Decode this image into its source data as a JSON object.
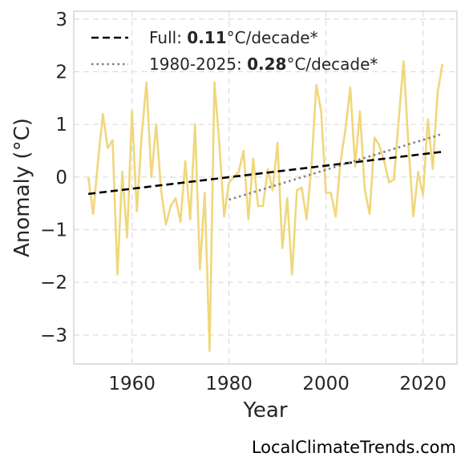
{
  "chart_data": {
    "type": "line",
    "xlabel": "Year",
    "ylabel": "Anomaly (°C)",
    "xlim": [
      1948,
      2027
    ],
    "ylim": [
      -3.55,
      3.15
    ],
    "xticks": [
      1960,
      1980,
      2000,
      2020
    ],
    "yticks": [
      -3,
      -2,
      -1,
      0,
      1,
      2,
      3
    ],
    "yticklabels": [
      "−3",
      "−2",
      "−1",
      "0",
      "1",
      "2",
      "3"
    ],
    "grid": true,
    "legend_position": "top-left",
    "colors": {
      "anomaly": "#f0d77b",
      "full_trend": "#000000",
      "recent_trend": "#808080"
    },
    "series": [
      {
        "style": "solid",
        "x": [
          1951,
          1952,
          1953,
          1954,
          1955,
          1956,
          1957,
          1958,
          1959,
          1960,
          1961,
          1962,
          1963,
          1964,
          1965,
          1966,
          1967,
          1968,
          1969,
          1970,
          1971,
          1972,
          1973,
          1974,
          1975,
          1976,
          1977,
          1978,
          1979,
          1980,
          1981,
          1982,
          1983,
          1984,
          1985,
          1986,
          1987,
          1988,
          1989,
          1990,
          1991,
          1992,
          1993,
          1994,
          1995,
          1996,
          1997,
          1998,
          1999,
          2000,
          2001,
          2002,
          2003,
          2004,
          2005,
          2006,
          2007,
          2008,
          2009,
          2010,
          2011,
          2012,
          2013,
          2014,
          2015,
          2016,
          2017,
          2018,
          2019,
          2020,
          2021,
          2022,
          2023,
          2024
        ],
        "y": [
          0.0,
          -0.7,
          0.3,
          1.2,
          0.55,
          0.7,
          -1.85,
          0.1,
          -1.15,
          1.25,
          -0.65,
          0.8,
          1.8,
          0.0,
          1.0,
          -0.25,
          -0.9,
          -0.55,
          -0.4,
          -0.85,
          0.3,
          -0.8,
          1.0,
          -1.75,
          -0.3,
          -3.3,
          1.8,
          0.65,
          -0.75,
          -0.1,
          0.0,
          0.1,
          0.5,
          -0.8,
          0.35,
          -0.55,
          -0.55,
          0.15,
          -0.25,
          0.65,
          -1.35,
          -0.4,
          -1.85,
          -0.25,
          -0.2,
          -0.8,
          0.2,
          1.75,
          1.25,
          -0.3,
          -0.3,
          -0.75,
          0.3,
          0.9,
          1.7,
          0.2,
          1.25,
          -0.25,
          -0.7,
          0.75,
          0.6,
          0.3,
          -0.1,
          -0.05,
          1.1,
          2.2,
          0.6,
          -0.75,
          0.1,
          -0.35,
          1.1,
          0.15,
          1.6,
          2.15
        ]
      },
      {
        "label_prefix": "Full: ",
        "label_value": "0.11",
        "label_suffix": "°C/decade*",
        "style": "dashed",
        "x": [
          1951,
          2024
        ],
        "y": [
          -0.32,
          0.48
        ]
      },
      {
        "label_prefix": "1980-2025: ",
        "label_value": "0.28",
        "label_suffix": "°C/decade*",
        "style": "dotted",
        "x": [
          1980,
          2024
        ],
        "y": [
          -0.43,
          0.82
        ]
      }
    ]
  },
  "watermark": "LocalClimateTrends.com"
}
